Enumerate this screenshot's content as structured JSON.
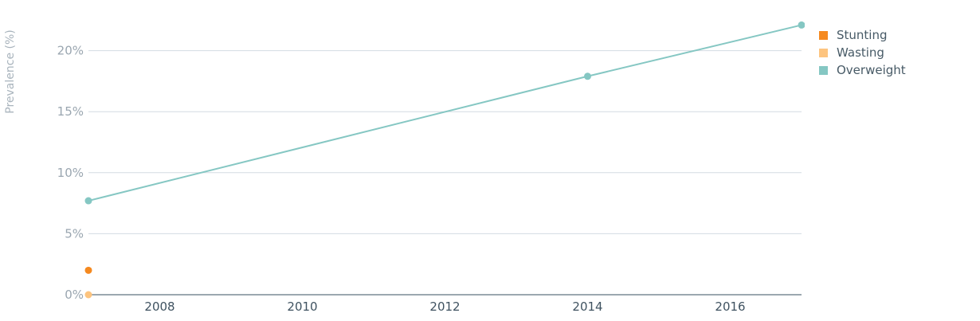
{
  "chart_data": {
    "type": "line",
    "ylabel": "Prevalence (%)",
    "xlabel": "",
    "xlim": [
      2007,
      2017
    ],
    "ylim": [
      0,
      20
    ],
    "x_ticks": [
      2008,
      2010,
      2012,
      2014,
      2016
    ],
    "y_ticks": [
      {
        "value": 0,
        "label": "0%"
      },
      {
        "value": 5,
        "label": "5%"
      },
      {
        "value": 10,
        "label": "10%"
      },
      {
        "value": 15,
        "label": "15%"
      },
      {
        "value": 20,
        "label": "20%"
      }
    ],
    "grid": true,
    "legend_position": "top-right",
    "series": [
      {
        "name": "Stunting",
        "color": "#f5891f",
        "points": [
          {
            "x": 2007,
            "y": 2.0
          }
        ]
      },
      {
        "name": "Wasting",
        "color": "#fdc47f",
        "points": [
          {
            "x": 2007,
            "y": 0.0
          }
        ]
      },
      {
        "name": "Overweight",
        "color": "#85c7c3",
        "points": [
          {
            "x": 2007,
            "y": 7.7
          },
          {
            "x": 2014,
            "y": 17.9
          },
          {
            "x": 2017,
            "y": 22.1
          }
        ]
      }
    ]
  }
}
